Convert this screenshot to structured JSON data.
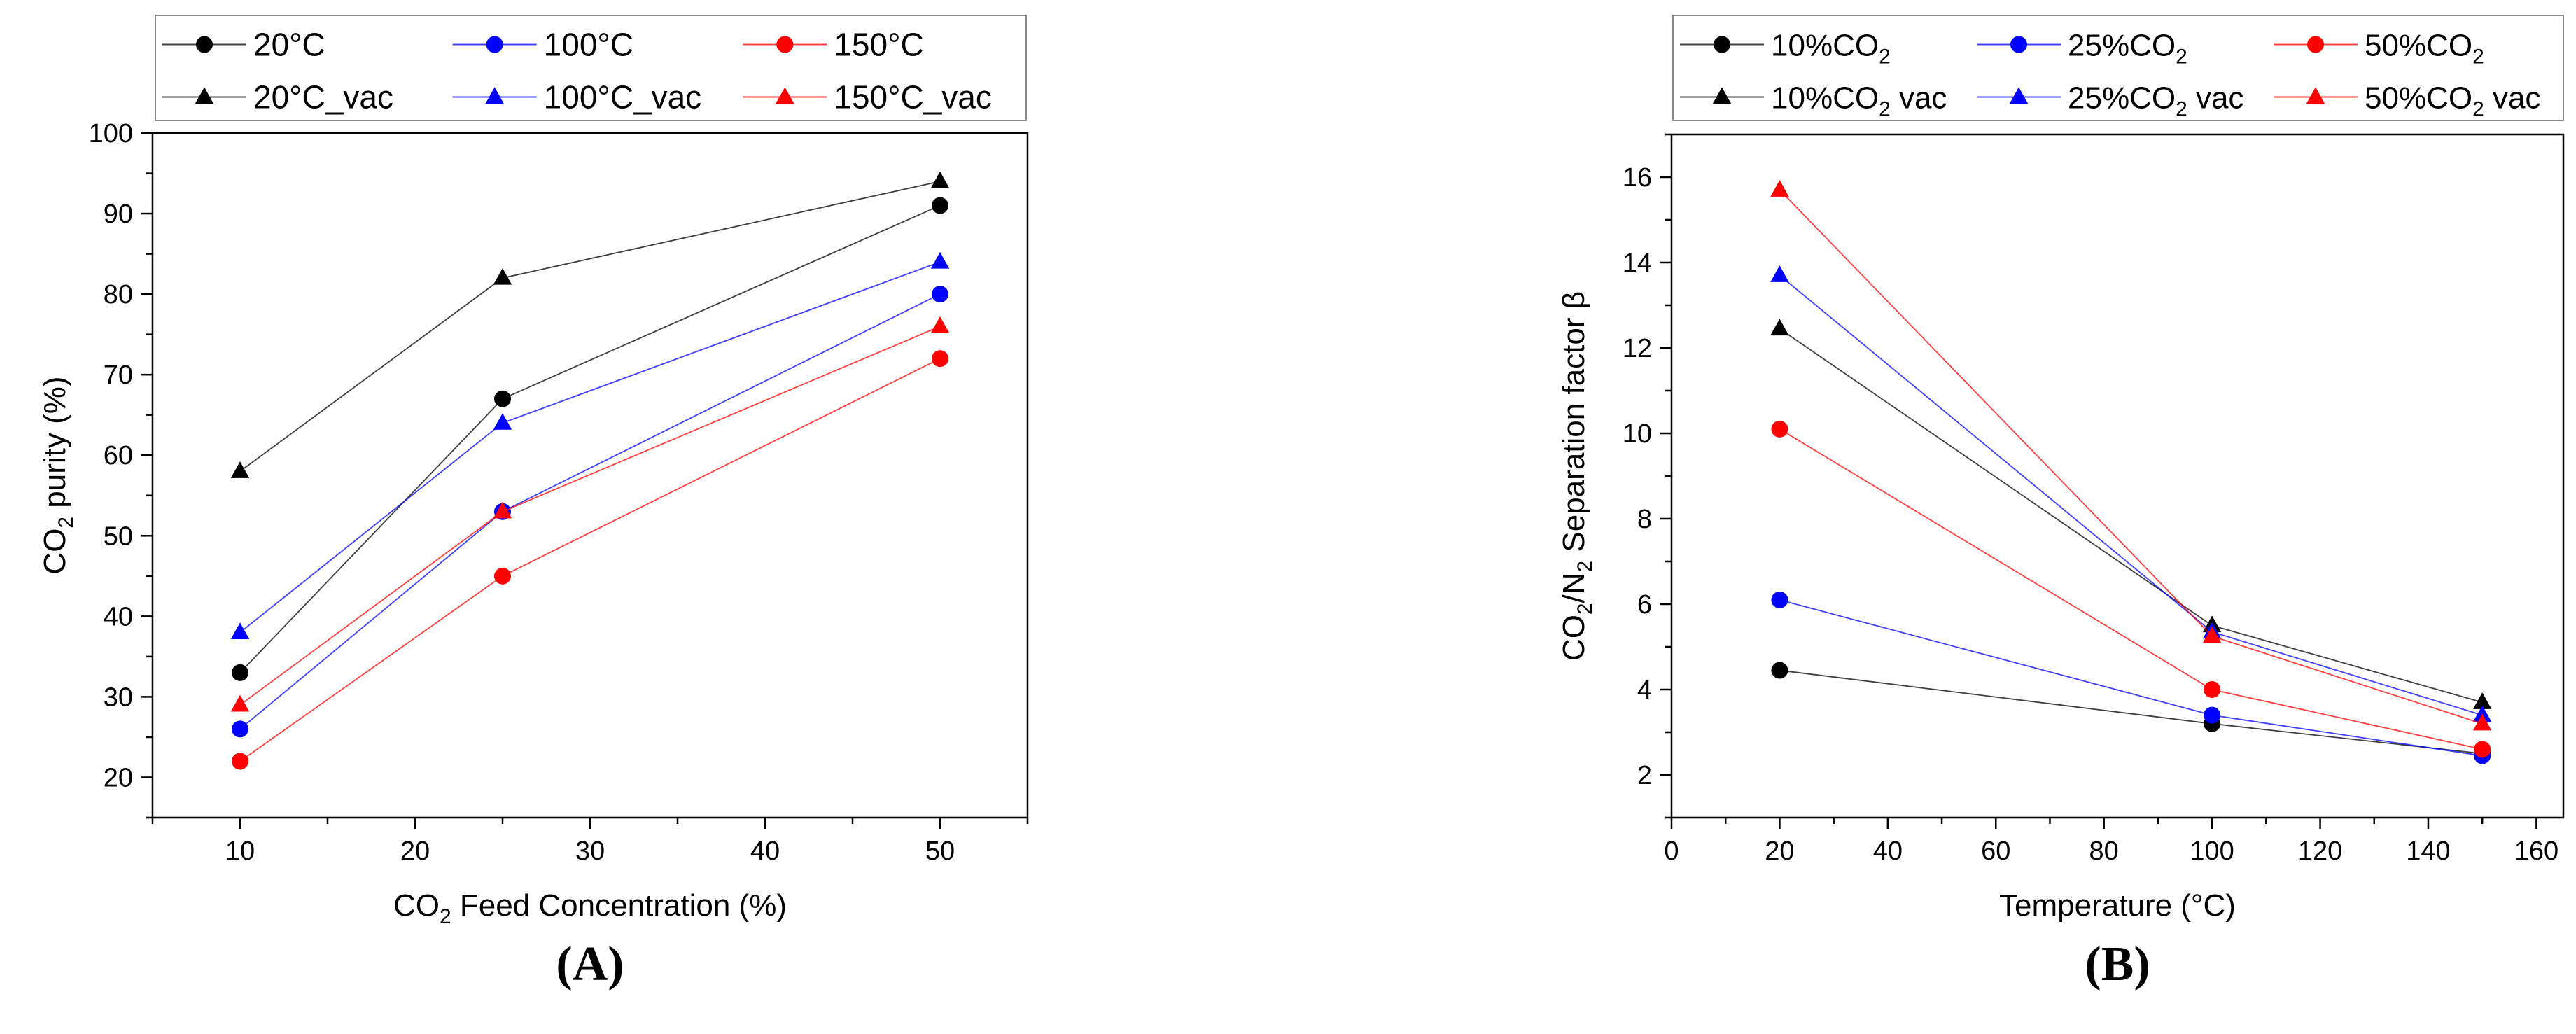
{
  "chart_data": [
    {
      "panel_label": "(A)",
      "type": "line",
      "xlabel_parts": [
        "CO",
        "2",
        " Feed Concentration (%)"
      ],
      "ylabel_parts": [
        "CO",
        "2",
        " purity (%)"
      ],
      "xlim": [
        5,
        55
      ],
      "ylim": [
        15,
        100
      ],
      "xticks": [
        10,
        20,
        30,
        40,
        50
      ],
      "yticks": [
        20,
        30,
        40,
        50,
        60,
        70,
        80,
        90,
        100
      ],
      "x": [
        10,
        25,
        50
      ],
      "legend_position": "top",
      "series": [
        {
          "name": "20°C",
          "legend": [
            [
              "20°C",
              ""
            ]
          ],
          "color": "#000000",
          "marker": "circle",
          "values": [
            33,
            67,
            91
          ]
        },
        {
          "name": "100°C",
          "legend": [
            [
              "100°C",
              ""
            ]
          ],
          "color": "#0000ff",
          "marker": "circle",
          "values": [
            26,
            53,
            80
          ]
        },
        {
          "name": "150°C",
          "legend": [
            [
              "150°C",
              ""
            ]
          ],
          "color": "#ff0000",
          "marker": "circle",
          "values": [
            22,
            45,
            72
          ]
        },
        {
          "name": "20°C_vac",
          "legend": [
            [
              "20°C_vac",
              ""
            ]
          ],
          "color": "#000000",
          "marker": "triangle",
          "values": [
            58,
            82,
            94
          ]
        },
        {
          "name": "100°C_vac",
          "legend": [
            [
              "100°C_vac",
              ""
            ]
          ],
          "color": "#0000ff",
          "marker": "triangle",
          "values": [
            38,
            64,
            84
          ]
        },
        {
          "name": "150°C_vac",
          "legend": [
            [
              "150°C_vac",
              ""
            ]
          ],
          "color": "#ff0000",
          "marker": "triangle",
          "values": [
            29,
            53,
            76
          ]
        }
      ]
    },
    {
      "panel_label": "(B)",
      "type": "line",
      "xlabel_parts": [
        "Temperature (°C)",
        "",
        ""
      ],
      "ylabel_parts": [
        "CO",
        "2",
        "/N",
        "2",
        " Separation factor β"
      ],
      "xlim": [
        0,
        165
      ],
      "ylim": [
        1,
        17
      ],
      "xticks": [
        0,
        20,
        40,
        60,
        80,
        100,
        120,
        140,
        160
      ],
      "yticks": [
        2,
        4,
        6,
        8,
        10,
        12,
        14,
        16
      ],
      "x": [
        20,
        100,
        150
      ],
      "legend_position": "top",
      "series": [
        {
          "name": "10%CO2",
          "legend": [
            [
              "10%CO",
              ""
            ],
            [
              "2",
              "sub"
            ]
          ],
          "color": "#000000",
          "marker": "circle",
          "values": [
            4.45,
            3.2,
            2.5
          ]
        },
        {
          "name": "25%CO2",
          "legend": [
            [
              "25%CO",
              ""
            ],
            [
              "2",
              "sub"
            ]
          ],
          "color": "#0000ff",
          "marker": "circle",
          "values": [
            6.1,
            3.4,
            2.45
          ]
        },
        {
          "name": "50%CO2",
          "legend": [
            [
              "50%CO",
              ""
            ],
            [
              "2",
              "sub"
            ]
          ],
          "color": "#ff0000",
          "marker": "circle",
          "values": [
            10.1,
            4.0,
            2.6
          ]
        },
        {
          "name": "10%CO2 vac",
          "legend": [
            [
              "10%CO",
              ""
            ],
            [
              "2",
              "sub"
            ],
            [
              " vac",
              ""
            ]
          ],
          "color": "#000000",
          "marker": "triangle",
          "values": [
            12.45,
            5.5,
            3.7
          ]
        },
        {
          "name": "25%CO2 vac",
          "legend": [
            [
              "25%CO",
              ""
            ],
            [
              "2",
              "sub"
            ],
            [
              " vac",
              ""
            ]
          ],
          "color": "#0000ff",
          "marker": "triangle",
          "values": [
            13.7,
            5.35,
            3.4
          ]
        },
        {
          "name": "50%CO2 vac",
          "legend": [
            [
              "50%CO",
              ""
            ],
            [
              "2",
              "sub"
            ],
            [
              " vac",
              ""
            ]
          ],
          "color": "#ff0000",
          "marker": "triangle",
          "values": [
            15.7,
            5.25,
            3.2
          ]
        }
      ]
    }
  ]
}
